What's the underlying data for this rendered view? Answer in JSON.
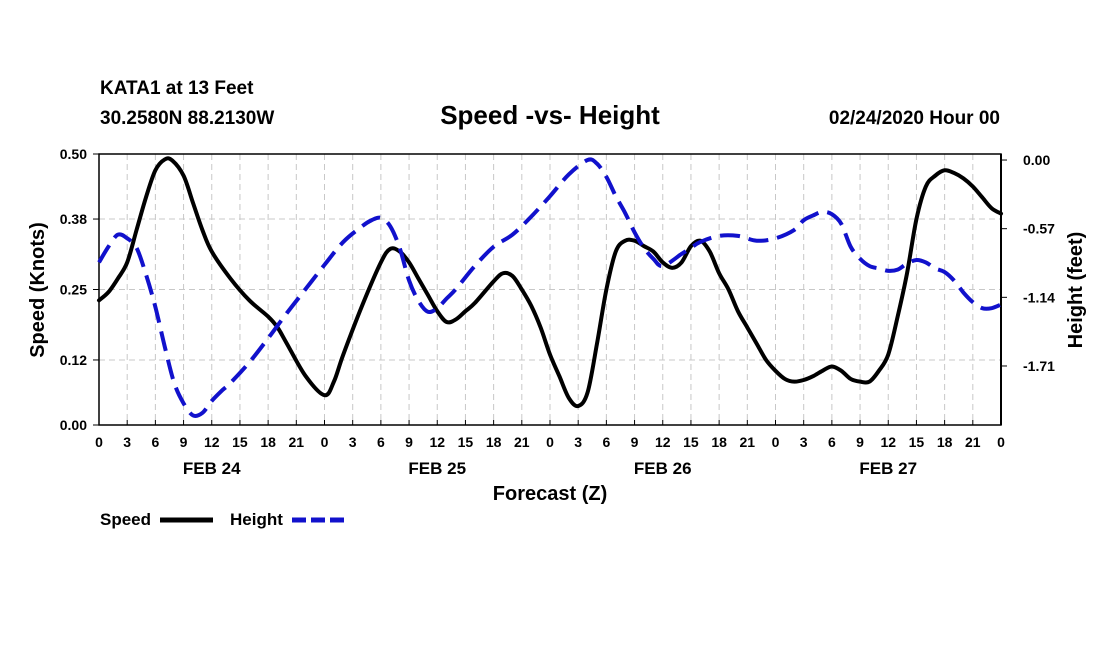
{
  "header": {
    "station": "KATA1 at 13 Feet",
    "coords": "30.2580N 88.2130W",
    "title": "Speed -vs- Height",
    "timestamp": "02/24/2020 Hour 00"
  },
  "chart_data": {
    "type": "line",
    "title": "Speed -vs- Height",
    "xlabel": "Forecast (Z)",
    "ylabel_left": "Speed (Knots)",
    "ylabel_right": "Height (feet)",
    "x_range_hours": [
      0,
      96
    ],
    "x_tick_hours": [
      0,
      3,
      6,
      9,
      12,
      15,
      18,
      21,
      24,
      27,
      30,
      33,
      36,
      39,
      42,
      45,
      48,
      51,
      54,
      57,
      60,
      63,
      66,
      69,
      72,
      75,
      78,
      81,
      84,
      87,
      90,
      93,
      96
    ],
    "x_tick_labels": [
      "0",
      "3",
      "6",
      "9",
      "12",
      "15",
      "18",
      "21",
      "0",
      "3",
      "6",
      "9",
      "12",
      "15",
      "18",
      "21",
      "0",
      "3",
      "6",
      "9",
      "12",
      "15",
      "18",
      "21",
      "0",
      "3",
      "6",
      "9",
      "12",
      "15",
      "18",
      "21",
      "0"
    ],
    "day_labels": [
      {
        "hour": 12,
        "label": "FEB 24"
      },
      {
        "hour": 36,
        "label": "FEB 25"
      },
      {
        "hour": 60,
        "label": "FEB 26"
      },
      {
        "hour": 84,
        "label": "FEB 27"
      }
    ],
    "y_left": {
      "range": [
        0,
        0.5
      ],
      "ticks": [
        0.0,
        0.12,
        0.25,
        0.38,
        0.5
      ],
      "tick_labels": [
        "0.00",
        "0.12",
        "0.25",
        "0.38",
        "0.50"
      ]
    },
    "y_right": {
      "range": [
        -2.2,
        0.05
      ],
      "ticks": [
        0.0,
        -0.57,
        -1.14,
        -1.71
      ],
      "tick_labels": [
        "0.00",
        "-0.57",
        "-1.14",
        "-1.71"
      ]
    },
    "grid": true,
    "legend_position": "bottom-left",
    "series": [
      {
        "name": "Speed",
        "axis": "left",
        "color": "#000000",
        "style": "solid",
        "x": [
          0,
          1,
          2,
          3,
          4,
          5,
          6,
          7,
          7.8,
          9,
          10,
          11,
          12,
          14,
          16,
          18,
          19,
          20,
          22,
          24,
          25,
          26,
          28,
          30,
          31,
          32,
          33,
          34,
          35,
          36,
          37,
          38,
          39,
          40,
          42,
          43,
          44,
          45,
          46,
          47,
          48,
          49,
          50,
          51,
          52,
          53,
          54,
          55,
          56,
          57,
          58,
          59,
          60,
          61,
          62,
          63,
          64,
          65,
          66,
          67,
          68,
          69,
          70,
          71,
          72,
          73,
          74,
          75,
          76,
          77,
          78,
          79,
          80,
          81,
          82,
          83,
          84,
          85,
          86,
          87,
          88,
          89,
          90,
          91,
          92,
          93,
          94,
          95,
          96
        ],
        "y": [
          0.23,
          0.245,
          0.27,
          0.3,
          0.36,
          0.42,
          0.47,
          0.49,
          0.488,
          0.46,
          0.41,
          0.36,
          0.32,
          0.27,
          0.23,
          0.2,
          0.18,
          0.15,
          0.09,
          0.055,
          0.08,
          0.13,
          0.22,
          0.3,
          0.325,
          0.32,
          0.3,
          0.27,
          0.24,
          0.21,
          0.19,
          0.195,
          0.21,
          0.225,
          0.265,
          0.28,
          0.275,
          0.25,
          0.22,
          0.18,
          0.13,
          0.09,
          0.05,
          0.035,
          0.06,
          0.15,
          0.25,
          0.32,
          0.34,
          0.34,
          0.33,
          0.32,
          0.3,
          0.29,
          0.3,
          0.33,
          0.34,
          0.32,
          0.28,
          0.25,
          0.21,
          0.18,
          0.15,
          0.12,
          0.1,
          0.085,
          0.08,
          0.083,
          0.09,
          0.1,
          0.108,
          0.1,
          0.085,
          0.08,
          0.08,
          0.1,
          0.13,
          0.2,
          0.28,
          0.38,
          0.44,
          0.46,
          0.47,
          0.465,
          0.455,
          0.44,
          0.42,
          0.4,
          0.39
        ]
      },
      {
        "name": "Height",
        "axis": "right",
        "color": "#1111cc",
        "style": "dashed",
        "x": [
          0,
          1,
          2,
          3,
          4,
          5,
          6,
          7,
          8,
          9,
          10,
          11,
          12,
          13,
          14,
          16,
          18,
          20,
          22,
          24,
          26,
          28,
          29,
          30,
          31,
          32,
          33,
          34,
          35,
          36,
          37,
          38,
          40,
          42,
          44,
          46,
          48,
          50,
          52,
          53,
          54,
          55,
          56,
          57,
          58,
          59,
          60,
          62,
          63,
          64,
          66,
          68,
          70,
          72,
          74,
          75,
          76,
          77,
          78,
          79,
          80,
          81,
          82,
          83,
          84,
          85,
          86,
          87,
          88,
          89,
          90,
          91,
          92,
          93,
          94,
          95,
          96
        ],
        "y": [
          -0.85,
          -0.72,
          -0.62,
          -0.65,
          -0.73,
          -0.95,
          -1.22,
          -1.55,
          -1.85,
          -2.02,
          -2.12,
          -2.1,
          -2.0,
          -1.92,
          -1.85,
          -1.68,
          -1.48,
          -1.27,
          -1.07,
          -0.87,
          -0.68,
          -0.55,
          -0.5,
          -0.48,
          -0.55,
          -0.73,
          -1.0,
          -1.17,
          -1.26,
          -1.23,
          -1.15,
          -1.07,
          -0.88,
          -0.72,
          -0.62,
          -0.47,
          -0.3,
          -0.12,
          0.0,
          -0.03,
          -0.14,
          -0.3,
          -0.44,
          -0.6,
          -0.73,
          -0.82,
          -0.88,
          -0.78,
          -0.73,
          -0.68,
          -0.63,
          -0.63,
          -0.67,
          -0.65,
          -0.58,
          -0.5,
          -0.46,
          -0.43,
          -0.45,
          -0.53,
          -0.72,
          -0.82,
          -0.88,
          -0.9,
          -0.92,
          -0.91,
          -0.86,
          -0.83,
          -0.85,
          -0.9,
          -0.93,
          -1.0,
          -1.1,
          -1.18,
          -1.23,
          -1.23,
          -1.2
        ]
      }
    ]
  },
  "legend": [
    {
      "label": "Speed",
      "color": "#000000",
      "style": "solid"
    },
    {
      "label": "Height",
      "color": "#1111cc",
      "style": "dashed"
    }
  ]
}
